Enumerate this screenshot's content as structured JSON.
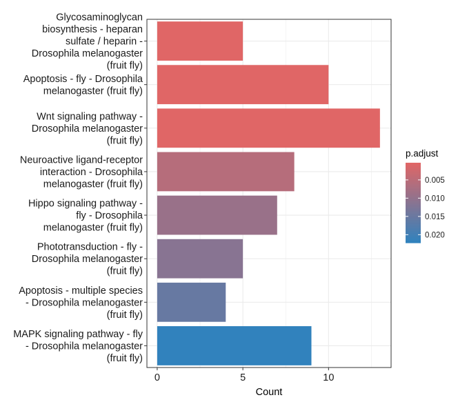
{
  "chart_data": {
    "type": "bar",
    "orientation": "horizontal",
    "categories": [
      "Glycosaminoglycan biosynthesis - heparan sulfate / heparin - Drosophila melanogaster (fruit fly)",
      "Apoptosis - fly - Drosophila melanogaster (fruit fly)",
      "Wnt signaling pathway - Drosophila melanogaster (fruit fly)",
      "Neuroactive ligand-receptor interaction - Drosophila melanogaster (fruit fly)",
      "Hippo signaling pathway - fly - Drosophila melanogaster (fruit fly)",
      "Phototransduction - fly - Drosophila melanogaster (fruit fly)",
      "Apoptosis - multiple species - Drosophila melanogaster (fruit fly)",
      "MAPK signaling pathway - fly - Drosophila melanogaster (fruit fly)"
    ],
    "category_lines": [
      [
        "Glycosaminoglycan",
        "biosynthesis - heparan",
        "sulfate / heparin -",
        "Drosophila melanogaster",
        "(fruit fly)"
      ],
      [
        "Apoptosis - fly - Drosophila",
        "melanogaster (fruit fly)"
      ],
      [
        "Wnt signaling pathway -",
        "Drosophila melanogaster",
        "(fruit fly)"
      ],
      [
        "Neuroactive ligand-receptor",
        "interaction - Drosophila",
        "melanogaster (fruit fly)"
      ],
      [
        "Hippo signaling pathway -",
        "fly - Drosophila",
        "melanogaster (fruit fly)"
      ],
      [
        "Phototransduction - fly -",
        "Drosophila melanogaster",
        "(fruit fly)"
      ],
      [
        "Apoptosis - multiple species",
        "- Drosophila melanogaster",
        "(fruit fly)"
      ],
      [
        "MAPK signaling pathway - fly",
        "- Drosophila melanogaster",
        "(fruit fly)"
      ]
    ],
    "values": [
      5,
      10,
      13,
      8,
      7,
      5,
      4,
      9
    ],
    "p_adjust": [
      0.0003,
      0.0003,
      0.0003,
      0.0055,
      0.0092,
      0.0113,
      0.0155,
      0.0222
    ],
    "xlabel": "Count",
    "ylabel": "",
    "xlim": [
      -0.6,
      13.65
    ],
    "xticks": [
      0,
      5,
      10
    ],
    "grid": true,
    "legend": {
      "title": "p.adjust",
      "position": "right",
      "ticks": [
        0.005,
        0.01,
        0.015,
        0.02
      ],
      "tick_labels": [
        "0.005",
        "0.010",
        "0.015",
        "0.020"
      ],
      "range": [
        0.0003,
        0.0222
      ],
      "color_low": "#E06666",
      "color_high": "#3182BD"
    }
  },
  "colors": {
    "low": "#E06666",
    "high": "#3182BD",
    "grid": "#ebebeb",
    "panel_border": "#333333"
  }
}
